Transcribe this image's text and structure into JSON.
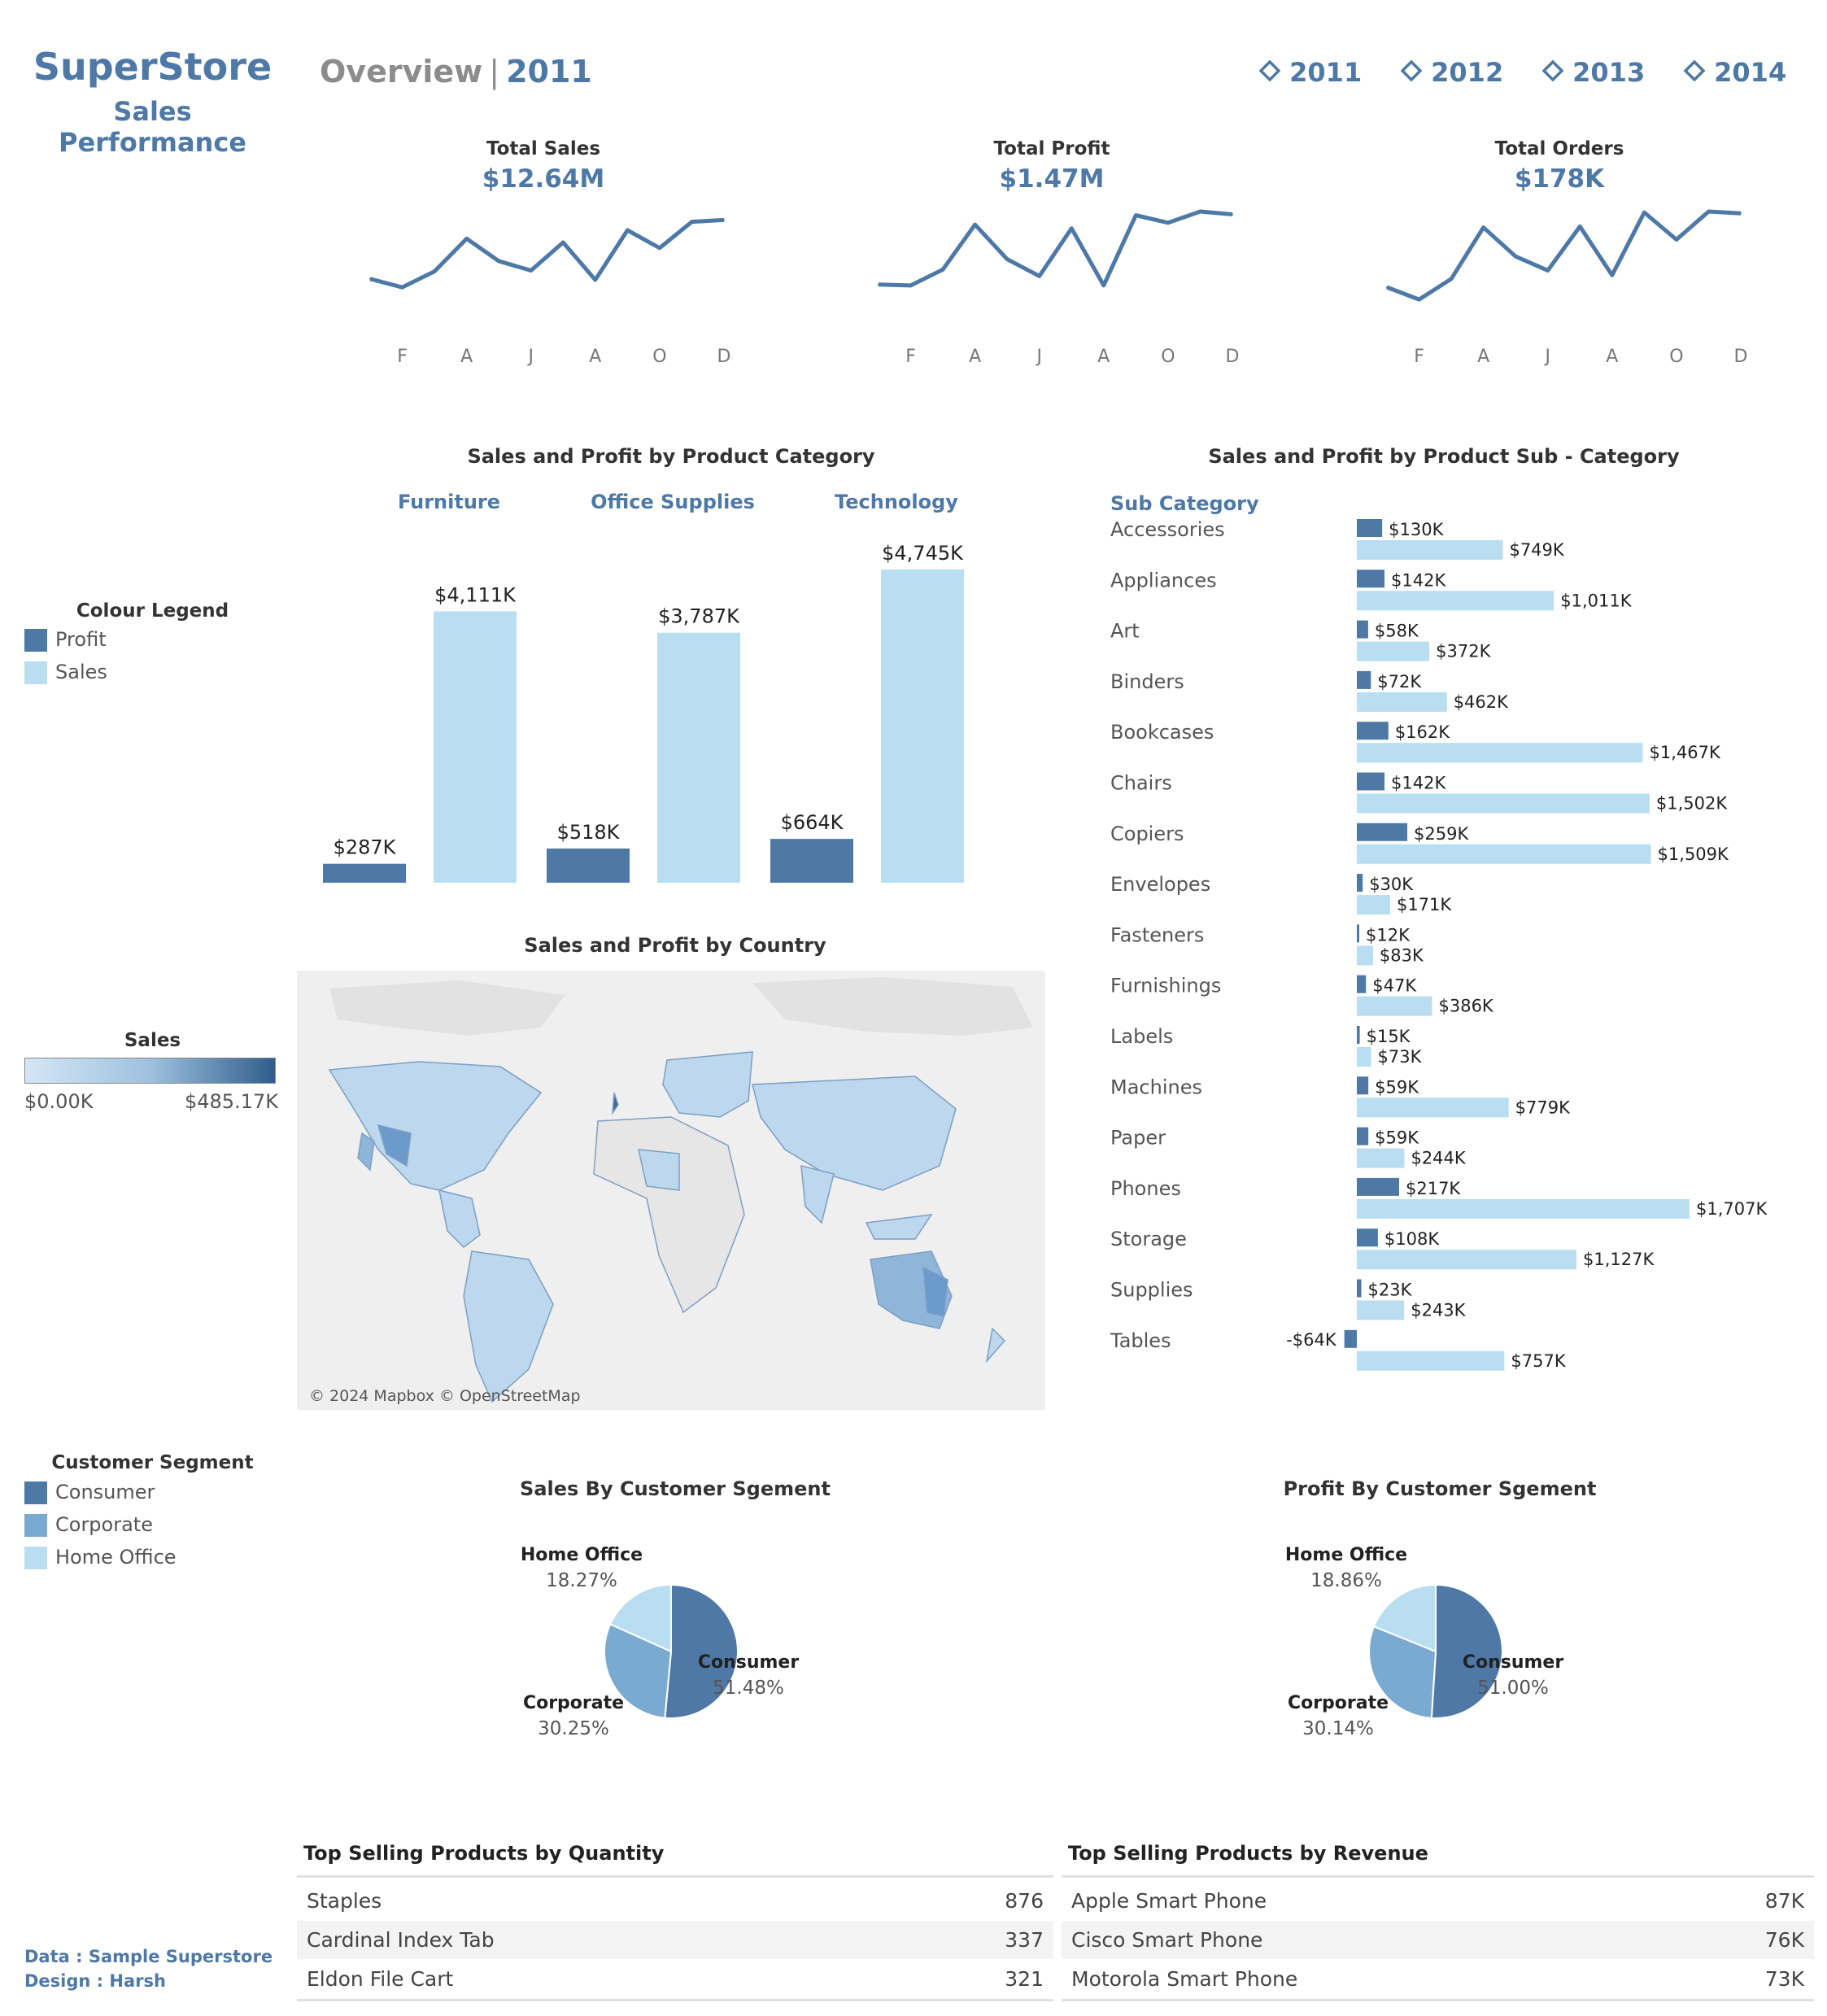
{
  "brand": {
    "title": "SuperStore",
    "subtitle": "Sales Performance"
  },
  "overview": {
    "label": "Overview",
    "separator": "|",
    "year": "2011"
  },
  "year_filters": [
    "2011",
    "2012",
    "2013",
    "2014"
  ],
  "year_filter_icon": "diamond-outline-icon",
  "colors": {
    "profit": "#4e79a7",
    "sales": "#b9ddf1",
    "corporate": "#7aaad0",
    "home_office": "#b9ddf1",
    "consumer": "#4e79a7",
    "brand": "#4e79a7"
  },
  "kpis": [
    {
      "label": "Total Sales",
      "value": "$12.64M"
    },
    {
      "label": "Total Profit",
      "value": "$1.47M"
    },
    {
      "label": "Total Orders",
      "value": "$178K"
    }
  ],
  "colour_legend": {
    "title": "Colour Legend",
    "items": [
      "Profit",
      "Sales"
    ]
  },
  "sales_gradient_legend": {
    "title": "Sales",
    "min": "$0.00K",
    "max": "$485.17K"
  },
  "segment_legend": {
    "title": "Customer Segment",
    "items": [
      "Consumer",
      "Corporate",
      "Home Office"
    ]
  },
  "map": {
    "title": "Sales and Profit by Country",
    "attribution": "© 2024 Mapbox © OpenStreetMap"
  },
  "tables": {
    "quantity": {
      "title": "Top Selling Products by Quantity",
      "rows": [
        {
          "name": "Staples",
          "value": "876"
        },
        {
          "name": "Cardinal Index Tab",
          "value": "337"
        },
        {
          "name": "Eldon File Cart",
          "value": "321"
        }
      ]
    },
    "revenue": {
      "title": "Top Selling Products by Revenue",
      "rows": [
        {
          "name": "Apple Smart Phone",
          "value": "87K"
        },
        {
          "name": "Cisco Smart Phone",
          "value": "76K"
        },
        {
          "name": "Motorola Smart Phone",
          "value": "73K"
        }
      ]
    }
  },
  "footer": {
    "data": "Data : Sample Superstore",
    "design": "Design : Harsh"
  },
  "chart_data": [
    {
      "type": "line",
      "title": "Total Sales",
      "x_tick_labels": [
        "F",
        "A",
        "J",
        "A",
        "O",
        "D"
      ],
      "series": [
        {
          "values": [
            0.28,
            0.19,
            0.36,
            0.71,
            0.47,
            0.37,
            0.67,
            0.27,
            0.8,
            0.61,
            0.89,
            0.91
          ]
        }
      ]
    },
    {
      "type": "line",
      "title": "Total Profit",
      "x_tick_labels": [
        "F",
        "A",
        "J",
        "A",
        "O",
        "D"
      ],
      "series": [
        {
          "values": [
            0.22,
            0.21,
            0.38,
            0.86,
            0.49,
            0.31,
            0.82,
            0.21,
            0.96,
            0.88,
            1.0,
            0.97
          ]
        }
      ]
    },
    {
      "type": "line",
      "title": "Total Orders",
      "x_tick_labels": [
        "F",
        "A",
        "J",
        "A",
        "O",
        "D"
      ],
      "series": [
        {
          "values": [
            0.19,
            0.06,
            0.28,
            0.83,
            0.52,
            0.37,
            0.84,
            0.32,
            0.99,
            0.7,
            1.0,
            0.98
          ]
        }
      ]
    },
    {
      "type": "bar",
      "title": "Sales and Profit by Product Category",
      "categories": [
        "Furniture",
        "Office Supplies",
        "Technology"
      ],
      "series": [
        {
          "name": "Profit",
          "values": [
            287,
            518,
            664
          ],
          "labels": [
            "$287K",
            "$518K",
            "$664K"
          ]
        },
        {
          "name": "Sales",
          "values": [
            4111,
            3787,
            4745
          ],
          "labels": [
            "$4,111K",
            "$3,787K",
            "$4,745K"
          ]
        }
      ],
      "ylim": [
        0,
        4745
      ]
    },
    {
      "type": "bar",
      "orientation": "horizontal",
      "title": "Sales and Profit by Product Sub - Category",
      "ylabel": "Sub Category",
      "categories": [
        "Accessories",
        "Appliances",
        "Art",
        "Binders",
        "Bookcases",
        "Chairs",
        "Copiers",
        "Envelopes",
        "Fasteners",
        "Furnishings",
        "Labels",
        "Machines",
        "Paper",
        "Phones",
        "Storage",
        "Supplies",
        "Tables"
      ],
      "series": [
        {
          "name": "Profit",
          "values": [
            130,
            142,
            58,
            72,
            162,
            142,
            259,
            30,
            12,
            47,
            15,
            59,
            59,
            217,
            108,
            23,
            -64
          ],
          "labels": [
            "$130K",
            "$142K",
            "$58K",
            "$72K",
            "$162K",
            "$142K",
            "$259K",
            "$30K",
            "$12K",
            "$47K",
            "$15K",
            "$59K",
            "$59K",
            "$217K",
            "$108K",
            "$23K",
            "-$64K"
          ]
        },
        {
          "name": "Sales",
          "values": [
            749,
            1011,
            372,
            462,
            1467,
            1502,
            1509,
            171,
            83,
            386,
            73,
            779,
            244,
            1707,
            1127,
            243,
            757
          ],
          "labels": [
            "$749K",
            "$1,011K",
            "$372K",
            "$462K",
            "$1,467K",
            "$1,502K",
            "$1,509K",
            "$171K",
            "$83K",
            "$386K",
            "$73K",
            "$779K",
            "$244K",
            "$1,707K",
            "$1,127K",
            "$243K",
            "$757K"
          ]
        }
      ]
    },
    {
      "type": "pie",
      "title": "Sales By Customer Sgement",
      "slices": [
        {
          "name": "Consumer",
          "value": 51.48,
          "label": "51.48%"
        },
        {
          "name": "Corporate",
          "value": 30.25,
          "label": "30.25%"
        },
        {
          "name": "Home Office",
          "value": 18.27,
          "label": "18.27%"
        }
      ]
    },
    {
      "type": "pie",
      "title": "Profit By Customer Sgement",
      "slices": [
        {
          "name": "Consumer",
          "value": 51.0,
          "label": "51.00%"
        },
        {
          "name": "Corporate",
          "value": 30.14,
          "label": "30.14%"
        },
        {
          "name": "Home Office",
          "value": 18.86,
          "label": "18.86%"
        }
      ]
    }
  ]
}
